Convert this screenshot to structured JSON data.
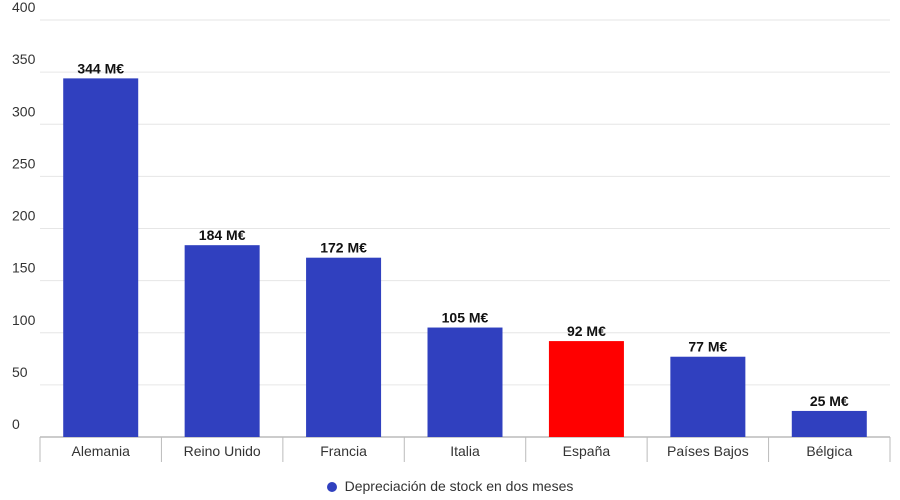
{
  "chart_data": {
    "type": "bar",
    "categories": [
      "Alemania",
      "Reino Unido",
      "Francia",
      "Italia",
      "España",
      "Países Bajos",
      "Bélgica"
    ],
    "values": [
      344,
      184,
      172,
      105,
      92,
      77,
      25
    ],
    "data_labels": [
      "344 M€",
      "184 M€",
      "172 M€",
      "105 M€",
      "92 M€",
      "77 M€",
      "25 M€"
    ],
    "series": [
      {
        "name": "Depreciación de stock en dos meses",
        "values": [
          344,
          184,
          172,
          105,
          92,
          77,
          25
        ]
      }
    ],
    "title": "",
    "xlabel": "",
    "ylabel": "",
    "ylim": [
      0,
      400
    ],
    "yticks": [
      0,
      50,
      100,
      150,
      200,
      250,
      300,
      350,
      400
    ],
    "grid": true,
    "legend": "bottom-center",
    "colors": {
      "default": "#3040bf",
      "highlight": "#ff0000",
      "highlight_category": "España"
    }
  }
}
